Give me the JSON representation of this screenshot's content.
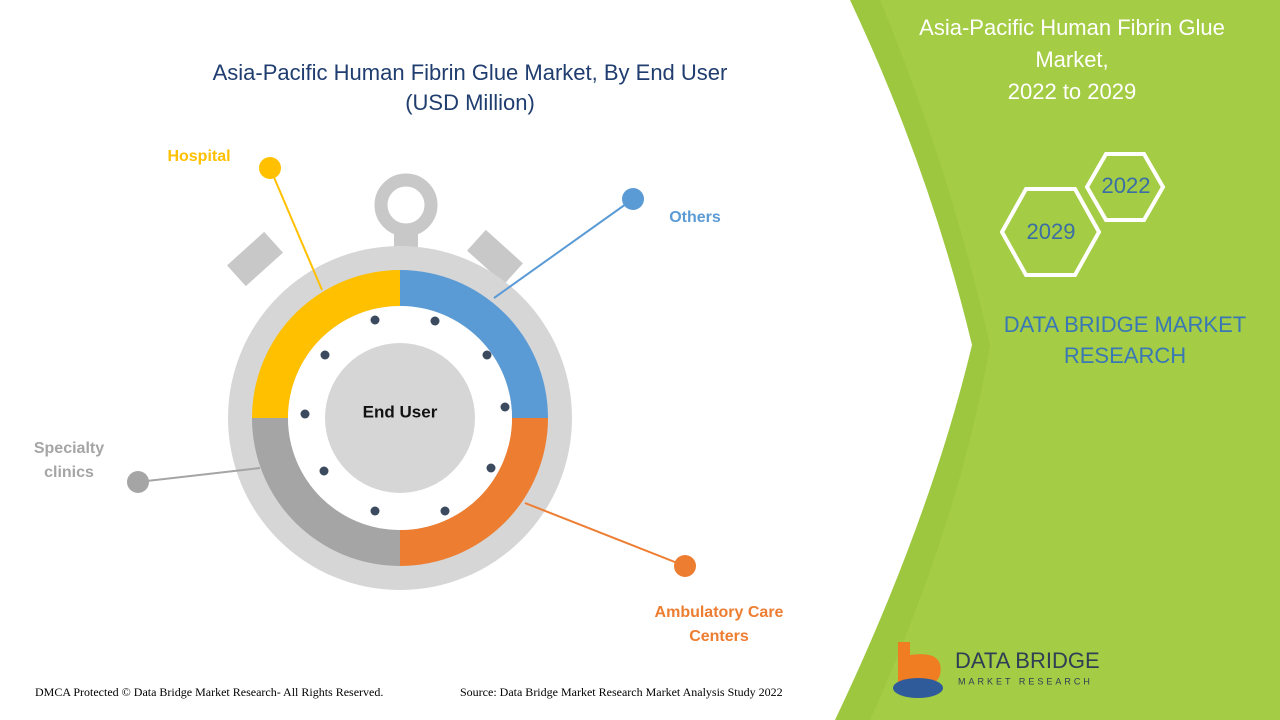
{
  "title": [
    "Asia-Pacific Human Fibrin Glue Market, By End User",
    "(USD Million)"
  ],
  "center_label": "End User",
  "segments": [
    {
      "label": [
        "Hospital"
      ]
    },
    {
      "label": [
        "Others"
      ]
    },
    {
      "label": [
        "Ambulatory Care",
        "Centers"
      ]
    },
    {
      "label": [
        "Specialty",
        "clinics"
      ]
    }
  ],
  "side_panel": {
    "title": [
      "Asia-Pacific Human Fibrin Glue",
      "Market,",
      "2022 to 2029"
    ],
    "hexagons": [
      "2022",
      "2029"
    ],
    "brand": [
      "DATA BRIDGE MARKET",
      "RESEARCH"
    ]
  },
  "logo": {
    "name": "DATA BRIDGE",
    "tagline": "MARKET RESEARCH"
  },
  "footer": {
    "left": "DMCA Protected © Data Bridge Market Research- All Rights Reserved.",
    "right": "Source: Data Bridge Market Research Market Analysis Study 2022"
  }
}
